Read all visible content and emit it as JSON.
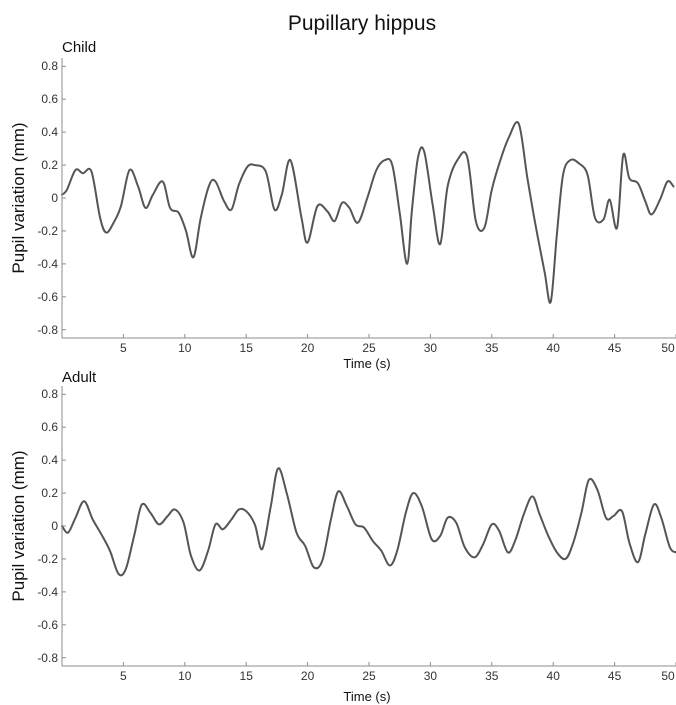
{
  "title": "Pupillary hippus",
  "chart_data": [
    {
      "type": "line",
      "panel_label": "Child",
      "xlabel": "Time (s)",
      "ylabel": "Pupil variation (mm)",
      "xlim": [
        0,
        50
      ],
      "ylim": [
        -0.85,
        0.85
      ],
      "xticks": [
        5,
        10,
        15,
        20,
        25,
        30,
        35,
        40,
        45,
        50
      ],
      "xtick_labels": [
        "5",
        "10",
        "15",
        "20",
        "25",
        "30",
        "35",
        "40",
        "45",
        "50"
      ],
      "yticks": [
        -0.8,
        -0.6,
        -0.4,
        -0.2,
        0,
        0.2,
        0.4,
        0.6,
        0.8
      ],
      "ytick_labels": [
        "-0.8",
        "-0.6",
        "-0.4",
        "-0.2",
        "0",
        "0.2",
        "0.4",
        "0.6",
        "0.8"
      ],
      "grid": false,
      "x": [
        0,
        0.4,
        1.1,
        1.7,
        2.4,
        3.1,
        3.6,
        4.2,
        4.8,
        5.5,
        6.2,
        6.8,
        7.4,
        8.2,
        8.8,
        9.5,
        10.1,
        10.7,
        11.3,
        12,
        12.5,
        13.2,
        13.8,
        14.4,
        15.1,
        15.7,
        16.6,
        17.3,
        17.9,
        18.6,
        19.5,
        20,
        20.8,
        21.6,
        22.2,
        22.8,
        23.4,
        24.1,
        24.9,
        25.6,
        26.3,
        26.9,
        27.5,
        28.1,
        28.5,
        29,
        29.5,
        30.2,
        30.8,
        31.4,
        32.2,
        33,
        33.7,
        34.4,
        35,
        35.7,
        36.4,
        37.2,
        37.9,
        38.6,
        39.3,
        39.8,
        40.3,
        40.8,
        41.4,
        42.1,
        42.8,
        43.4,
        44.1,
        44.6,
        45.2,
        45.7,
        46.2,
        46.9,
        47.5,
        48,
        48.7,
        49.3,
        49.8
      ],
      "y": [
        0.02,
        0.05,
        0.17,
        0.15,
        0.16,
        -0.12,
        -0.21,
        -0.15,
        -0.05,
        0.17,
        0.07,
        -0.06,
        0.02,
        0.1,
        -0.06,
        -0.09,
        -0.2,
        -0.36,
        -0.12,
        0.08,
        0.1,
        -0.02,
        -0.07,
        0.08,
        0.19,
        0.2,
        0.16,
        -0.07,
        0.02,
        0.23,
        -0.12,
        -0.27,
        -0.05,
        -0.08,
        -0.14,
        -0.03,
        -0.06,
        -0.15,
        0.01,
        0.17,
        0.23,
        0.2,
        -0.09,
        -0.4,
        -0.07,
        0.25,
        0.28,
        -0.05,
        -0.28,
        0.07,
        0.23,
        0.25,
        -0.14,
        -0.18,
        0.05,
        0.23,
        0.37,
        0.45,
        0.12,
        -0.18,
        -0.45,
        -0.63,
        -0.22,
        0.14,
        0.23,
        0.21,
        0.14,
        -0.12,
        -0.13,
        -0.01,
        -0.18,
        0.26,
        0.12,
        0.09,
        -0.02,
        -0.1,
        -0.01,
        0.1,
        0.07
      ]
    },
    {
      "type": "line",
      "panel_label": "Adult",
      "xlabel": "Time (s)",
      "ylabel": "Pupil variation (mm)",
      "xlim": [
        0,
        50
      ],
      "ylim": [
        -0.85,
        0.85
      ],
      "xticks": [
        5,
        10,
        15,
        20,
        25,
        30,
        35,
        40,
        45,
        50
      ],
      "xtick_labels": [
        "5",
        "10",
        "15",
        "20",
        "25",
        "30",
        "35",
        "40",
        "45",
        "50"
      ],
      "yticks": [
        -0.8,
        -0.6,
        -0.4,
        -0.2,
        0,
        0.2,
        0.4,
        0.6,
        0.8
      ],
      "ytick_labels": [
        "-0.8",
        "-0.6",
        "-0.4",
        "-0.2",
        "0",
        "0.2",
        "0.4",
        "0.6",
        "0.8"
      ],
      "grid": false,
      "x": [
        0,
        0.5,
        1.1,
        1.8,
        2.5,
        3.2,
        3.9,
        4.6,
        5.2,
        5.9,
        6.5,
        7.2,
        7.9,
        8.6,
        9.2,
        9.9,
        10.5,
        11.2,
        11.9,
        12.5,
        13.1,
        13.8,
        14.4,
        15,
        15.7,
        16.3,
        17,
        17.6,
        18.3,
        19.1,
        19.8,
        20.5,
        21.2,
        21.9,
        22.5,
        23.2,
        23.9,
        24.6,
        25.3,
        26,
        26.7,
        27.3,
        28,
        28.6,
        29.3,
        30.1,
        30.8,
        31.4,
        32.1,
        32.8,
        33.6,
        34.3,
        35,
        35.6,
        36.3,
        36.9,
        37.6,
        38.3,
        38.9,
        39.6,
        40.3,
        41,
        41.6,
        42.3,
        42.9,
        43.6,
        44.3,
        44.9,
        45.6,
        46.2,
        46.9,
        47.5,
        48.2,
        48.8,
        49.5,
        50
      ],
      "y": [
        0,
        -0.04,
        0.05,
        0.15,
        0.04,
        -0.05,
        -0.15,
        -0.29,
        -0.26,
        -0.05,
        0.13,
        0.08,
        0.01,
        0.06,
        0.1,
        0.02,
        -0.18,
        -0.27,
        -0.15,
        0.01,
        -0.02,
        0.04,
        0.1,
        0.09,
        0.01,
        -0.14,
        0.12,
        0.35,
        0.2,
        -0.04,
        -0.12,
        -0.25,
        -0.21,
        0.04,
        0.21,
        0.12,
        0.01,
        -0.01,
        -0.09,
        -0.15,
        -0.24,
        -0.15,
        0.08,
        0.2,
        0.12,
        -0.08,
        -0.06,
        0.05,
        0.02,
        -0.13,
        -0.19,
        -0.11,
        0.01,
        -0.03,
        -0.16,
        -0.09,
        0.07,
        0.18,
        0.07,
        -0.06,
        -0.16,
        -0.2,
        -0.11,
        0.08,
        0.28,
        0.22,
        0.05,
        0.06,
        0.09,
        -0.1,
        -0.22,
        -0.05,
        0.13,
        0.05,
        -0.13,
        -0.16
      ]
    }
  ]
}
